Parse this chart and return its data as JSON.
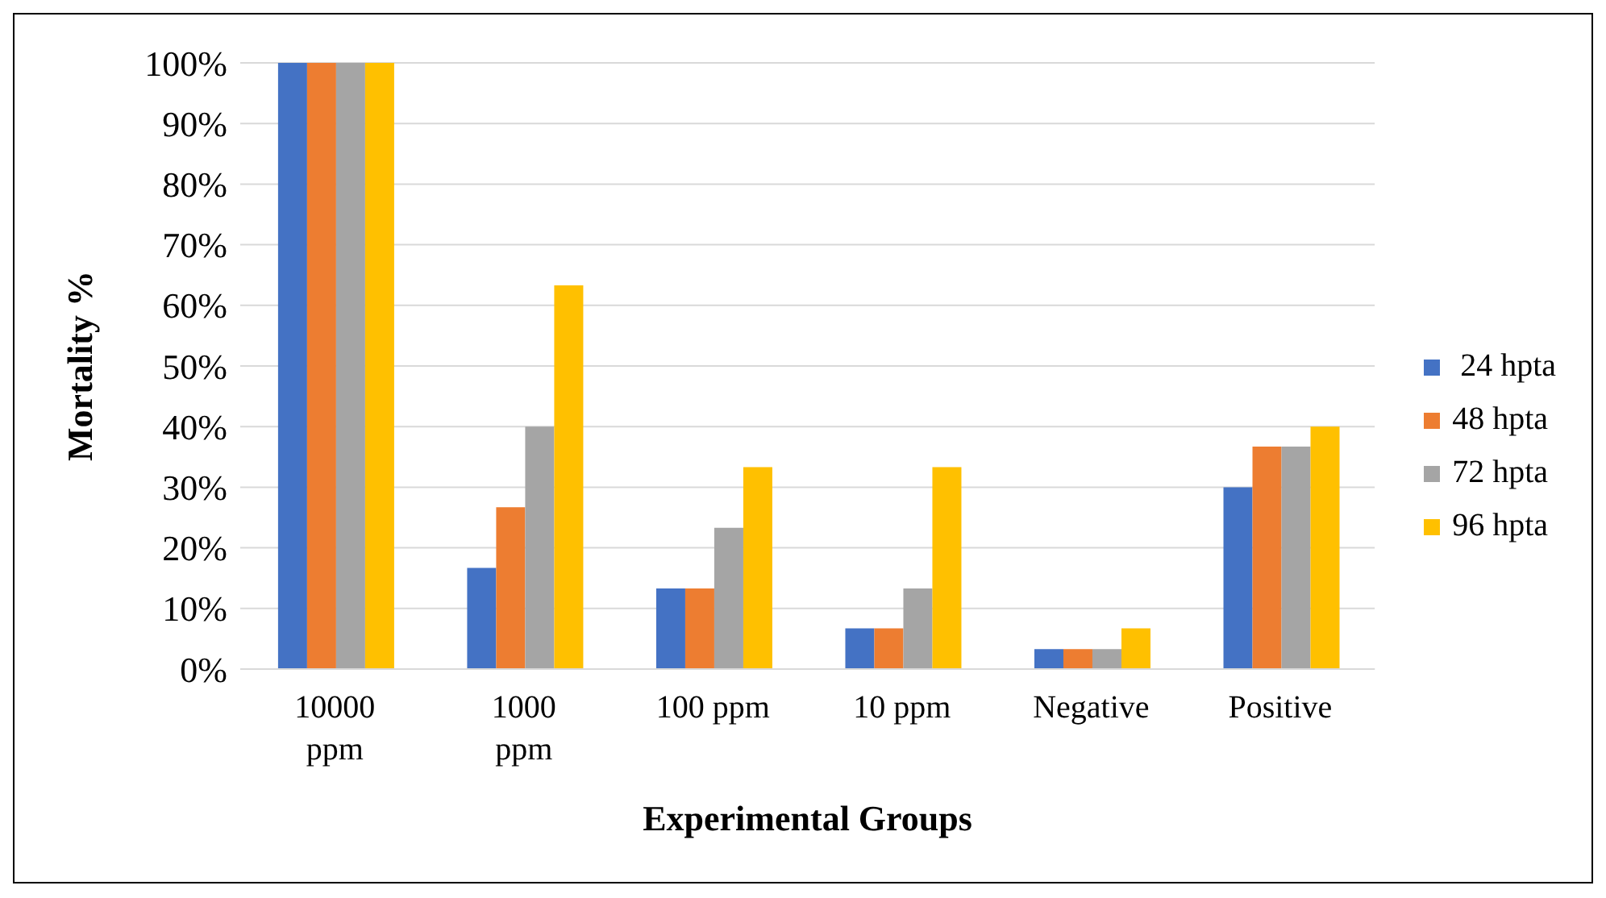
{
  "chart_data": {
    "type": "bar",
    "xlabel": "Experimental Groups",
    "ylabel": "Mortality %",
    "categories": [
      "10000 ppm",
      "1000 ppm",
      "100 ppm",
      "10 ppm",
      "Negative",
      "Positive"
    ],
    "series": [
      {
        "name": " 24 hpta",
        "color": "#4472c4",
        "values": [
          100,
          16.7,
          13.3,
          6.7,
          3.3,
          30
        ]
      },
      {
        "name": "48 hpta",
        "color": "#ed7d31",
        "values": [
          100,
          26.7,
          13.3,
          6.7,
          3.3,
          36.7
        ]
      },
      {
        "name": "72 hpta",
        "color": "#a5a5a5",
        "values": [
          100,
          40,
          23.3,
          13.3,
          3.3,
          36.7
        ]
      },
      {
        "name": "96 hpta",
        "color": "#ffc000",
        "values": [
          100,
          63.3,
          33.3,
          33.3,
          6.7,
          40
        ]
      }
    ],
    "ylim": [
      0,
      100
    ],
    "yticks": [
      {
        "value": 0,
        "label": "0%"
      },
      {
        "value": 10,
        "label": "10%"
      },
      {
        "value": 20,
        "label": "20%"
      },
      {
        "value": 30,
        "label": "30%"
      },
      {
        "value": 40,
        "label": "40%"
      },
      {
        "value": 50,
        "label": "50%"
      },
      {
        "value": 60,
        "label": "60%"
      },
      {
        "value": 70,
        "label": "70%"
      },
      {
        "value": 80,
        "label": "80%"
      },
      {
        "value": 90,
        "label": "90%"
      },
      {
        "value": 100,
        "label": "100%"
      }
    ],
    "grid": "y",
    "legend": "right"
  }
}
